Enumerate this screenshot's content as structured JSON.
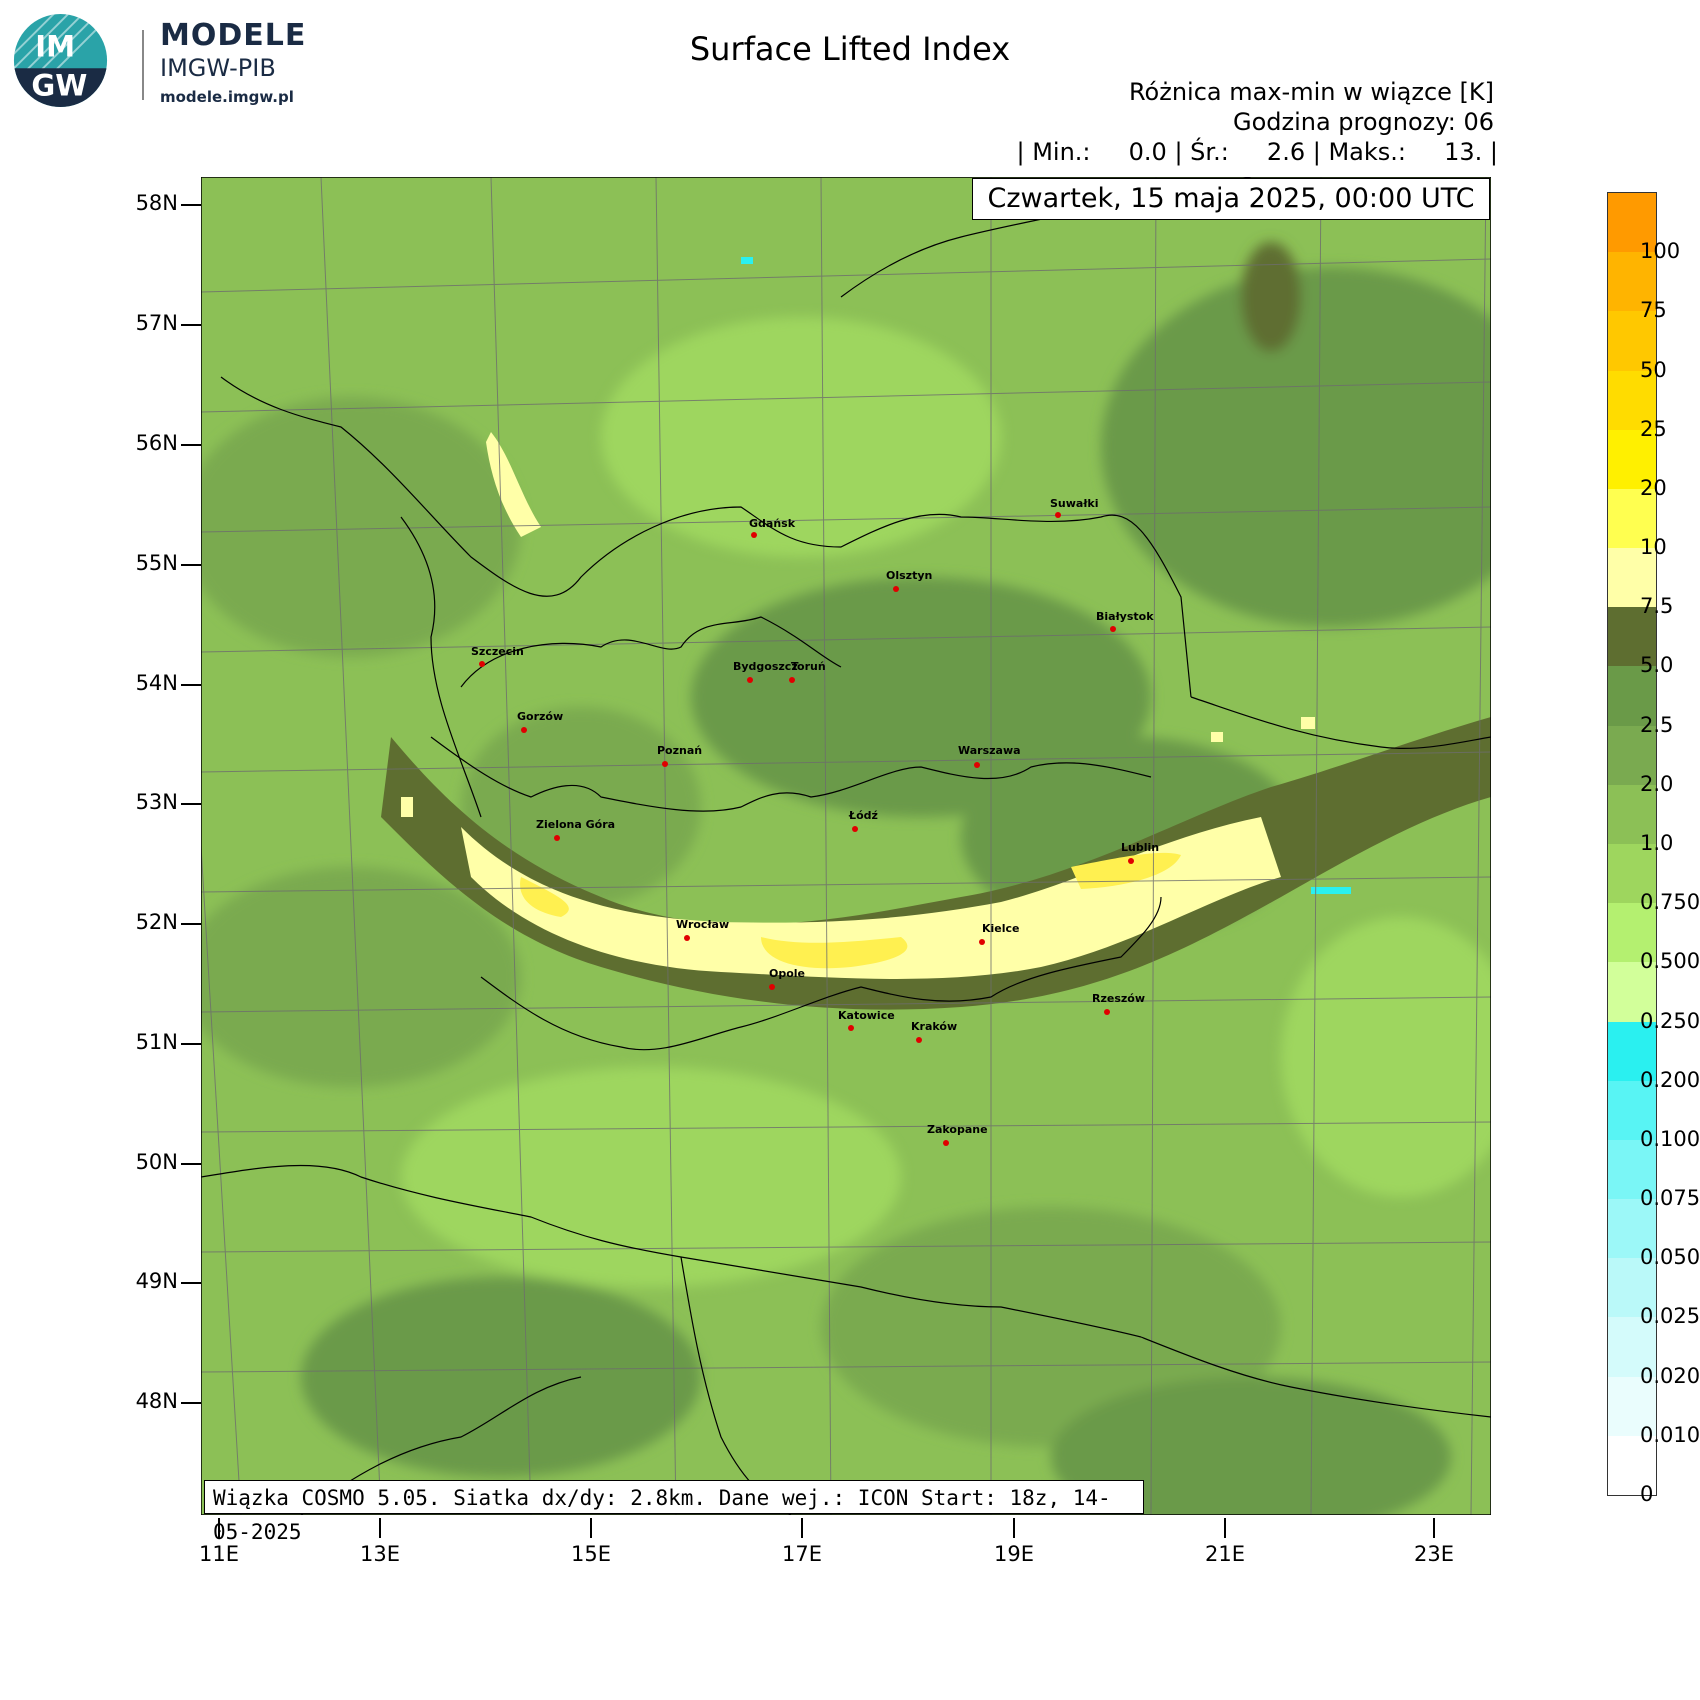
{
  "logo": {
    "mark": "IM GW",
    "brand": "MODELE",
    "org": "IMGW-PIB",
    "url": "modele.imgw.pl"
  },
  "title": "Surface Lifted Index",
  "header": {
    "line1": "Różnica max-min w wiązce [K]",
    "line2": "Godzina prognozy: 06",
    "stats": "| Min.:     0.0 | Śr.:     2.6 | Maks.:     13. |"
  },
  "valid_time": "Czwartek, 15 maja 2025, 00:00 UTC",
  "footer": "Wiązka COSMO 5.05. Siatka dx/dy: 2.8km. Dane wej.: ICON Start: 18z, 14-05-2025",
  "lat_labels": [
    "58N",
    "57N",
    "56N",
    "55N",
    "54N",
    "53N",
    "52N",
    "51N",
    "50N",
    "49N",
    "48N"
  ],
  "lon_labels": [
    "11E",
    "13E",
    "15E",
    "17E",
    "19E",
    "21E",
    "23E"
  ],
  "colorbar": {
    "labels": [
      "100",
      "75",
      "50",
      "25",
      "20",
      "10",
      "7.5",
      "5.0",
      "2.5",
      "2.0",
      "1.0",
      "0.750",
      "0.500",
      "0.250",
      "0.200",
      "0.100",
      "0.075",
      "0.050",
      "0.025",
      "0.020",
      "0.010",
      "0"
    ],
    "colors": [
      "#ff9a00",
      "#ffb400",
      "#ffc800",
      "#ffdc00",
      "#fff000",
      "#ffff50",
      "#ffffa8",
      "#5e6e30",
      "#6a9a48",
      "#7aaa50",
      "#8cc056",
      "#9ed65e",
      "#b4f070",
      "#d2ff9a",
      "#2af0f0",
      "#58f4f4",
      "#7af6f6",
      "#9cf8f8",
      "#baf9f9",
      "#d4fbfb",
      "#eafdfd",
      "#ffffff"
    ]
  },
  "cities": [
    {
      "name": "Gdańsk"
    },
    {
      "name": "Suwałki"
    },
    {
      "name": "Olsztyn"
    },
    {
      "name": "Białystok"
    },
    {
      "name": "Szczecin"
    },
    {
      "name": "Bydgoszcz"
    },
    {
      "name": "Toruń"
    },
    {
      "name": "Gorzów"
    },
    {
      "name": "Poznań"
    },
    {
      "name": "Warszawa"
    },
    {
      "name": "Zielona Góra"
    },
    {
      "name": "Łódź"
    },
    {
      "name": "Lublin"
    },
    {
      "name": "Wrocław"
    },
    {
      "name": "Kielce"
    },
    {
      "name": "Opole"
    },
    {
      "name": "Rzeszów"
    },
    {
      "name": "Katowice"
    },
    {
      "name": "Kraków"
    },
    {
      "name": "Zakopane"
    }
  ]
}
